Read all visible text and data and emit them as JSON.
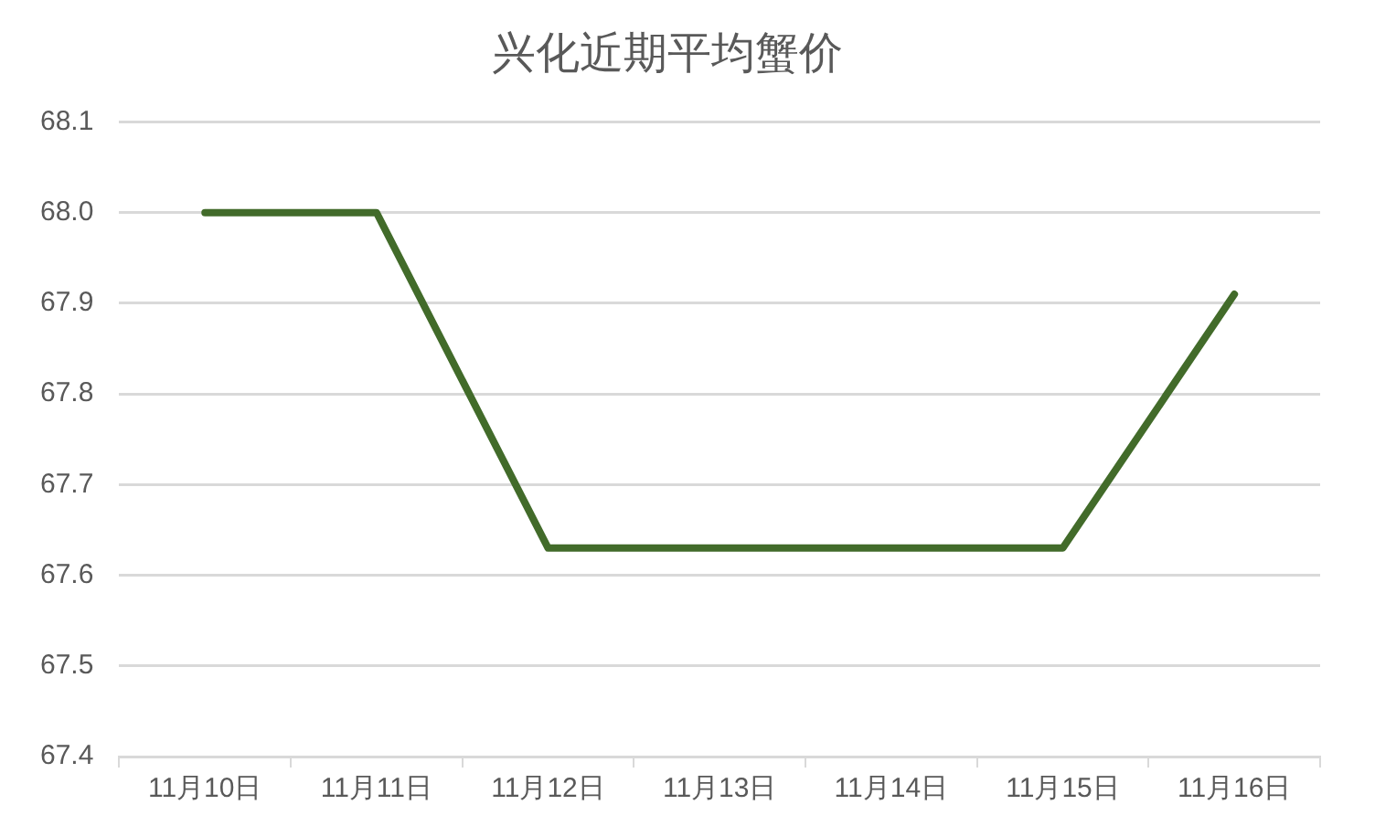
{
  "chart_data": {
    "type": "line",
    "title": "兴化近期平均蟹价",
    "categories": [
      "11月10日",
      "11月11日",
      "11月12日",
      "11月13日",
      "11月14日",
      "11月15日",
      "11月16日"
    ],
    "series": [
      {
        "color": "#426b2a",
        "values": [
          68.0,
          68.0,
          67.63,
          67.63,
          67.63,
          67.63,
          67.91
        ]
      }
    ],
    "ylim": [
      67.4,
      68.1
    ],
    "yticks": [
      {
        "value": 67.4,
        "label": "67.4"
      },
      {
        "value": 67.5,
        "label": "67.5"
      },
      {
        "value": 67.6,
        "label": "67.6"
      },
      {
        "value": 67.7,
        "label": "67.7"
      },
      {
        "value": 67.8,
        "label": "67.8"
      },
      {
        "value": 67.9,
        "label": "67.9"
      },
      {
        "value": 68.0,
        "label": "68.0"
      },
      {
        "value": 68.1,
        "label": "68.1"
      }
    ],
    "grid": "y",
    "legend": false,
    "marker": "none",
    "line_style": "solid"
  }
}
